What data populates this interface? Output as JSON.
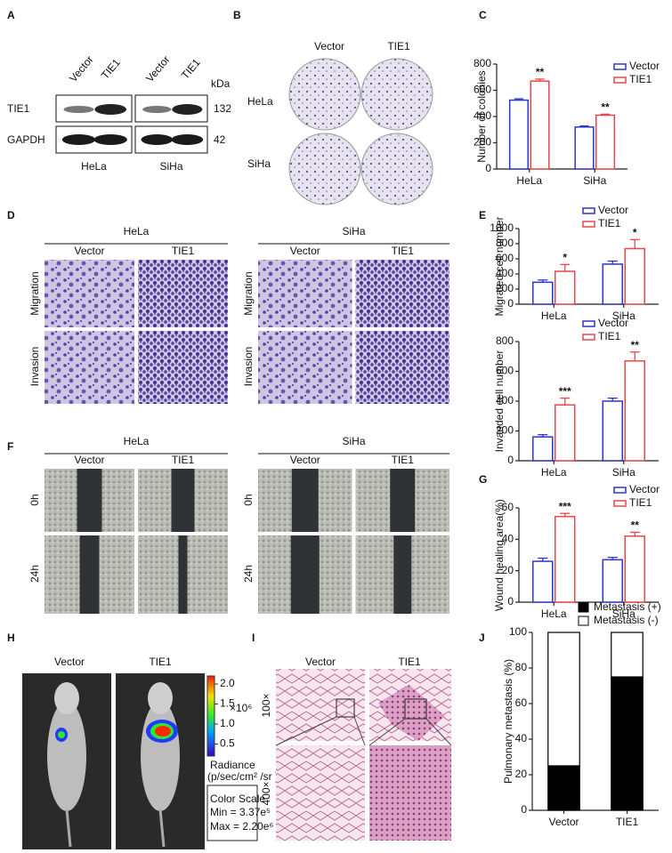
{
  "panel_labels": [
    "A",
    "B",
    "C",
    "D",
    "E",
    "F",
    "G",
    "H",
    "I",
    "J"
  ],
  "blot": {
    "groups": [
      "Vector",
      "TIE1",
      "Vector",
      "TIE1"
    ],
    "unit": "kDa",
    "proteins": [
      "TIE1",
      "GAPDH"
    ],
    "sizes": [
      132,
      42
    ],
    "cells": [
      "HeLa",
      "SiHa"
    ]
  },
  "colony": {
    "columns": [
      "Vector",
      "TIE1"
    ],
    "rows": [
      "HeLa",
      "SiHa"
    ]
  },
  "transwell": {
    "cells": [
      "HeLa",
      "SiHa"
    ],
    "columns": [
      "Vector",
      "TIE1"
    ],
    "rows": [
      "Migration",
      "Invasion"
    ]
  },
  "wound": {
    "cells": [
      "HeLa",
      "SiHa"
    ],
    "columns": [
      "Vector",
      "TIE1"
    ],
    "rows": [
      "0h",
      "24h"
    ]
  },
  "imaging": {
    "columns": [
      "Vector",
      "TIE1"
    ],
    "colorbar_ticks": [
      {
        "value": 2,
        "label": "2.0"
      },
      {
        "value": 1.5,
        "label": "1.5"
      },
      {
        "value": 1,
        "label": "1.0"
      },
      {
        "value": 0.5,
        "label": "0.5"
      }
    ],
    "colorbar_exponent": "×10⁶",
    "radiance_title": "Radiance",
    "radiance_unit": "(p/sec/cm² /sr )",
    "scale_title": "Color Scale",
    "scale_min": "Min = 3.37e⁵",
    "scale_max": "Max = 2.20e⁶"
  },
  "histology": {
    "columns": [
      "Vector",
      "TIE1"
    ],
    "rows": [
      "100×",
      "400×"
    ]
  },
  "chart_data": [
    {
      "type": "bar",
      "ylabel": "Number of colonies",
      "categories": [
        "HeLa",
        "SiHa"
      ],
      "series": [
        {
          "name": "Vector",
          "color": "#2e35c9",
          "values": [
            525,
            320
          ],
          "errors": [
            10,
            8
          ]
        },
        {
          "name": "TIE1",
          "color": "#e8474b",
          "values": [
            670,
            410
          ],
          "errors": [
            15,
            8
          ],
          "sig_labels": [
            "**",
            "**"
          ]
        }
      ],
      "ylim": [
        0,
        800
      ],
      "yticks": [
        0,
        200,
        400,
        600,
        800
      ]
    },
    {
      "type": "bar",
      "ylabel": "Migrated cell number",
      "categories": [
        "HeLa",
        "SiHa"
      ],
      "series": [
        {
          "name": "Vector",
          "color": "#2e35c9",
          "values": [
            290,
            530
          ],
          "errors": [
            30,
            40
          ]
        },
        {
          "name": "TIE1",
          "color": "#e8474b",
          "values": [
            435,
            735
          ],
          "errors": [
            90,
            120
          ],
          "sig_labels": [
            "*",
            "*"
          ]
        }
      ],
      "ylim": [
        0,
        1000
      ],
      "yticks": [
        0,
        200,
        400,
        600,
        800,
        1000
      ]
    },
    {
      "type": "bar",
      "ylabel": "Invaeded cell number",
      "categories": [
        "HeLa",
        "SiHa"
      ],
      "series": [
        {
          "name": "Vector",
          "color": "#2e35c9",
          "values": [
            160,
            400
          ],
          "errors": [
            15,
            20
          ]
        },
        {
          "name": "TIE1",
          "color": "#e8474b",
          "values": [
            375,
            670
          ],
          "errors": [
            45,
            60
          ],
          "sig_labels": [
            "***",
            "**"
          ]
        }
      ],
      "ylim": [
        0,
        800
      ],
      "yticks": [
        0,
        200,
        400,
        600,
        800
      ]
    },
    {
      "type": "bar",
      "ylabel": "Wound healing area(%)",
      "categories": [
        "HeLa",
        "SiHa"
      ],
      "series": [
        {
          "name": "Vector",
          "color": "#2e35c9",
          "values": [
            26,
            27
          ],
          "errors": [
            2,
            1.5
          ]
        },
        {
          "name": "TIE1",
          "color": "#e8474b",
          "values": [
            54.5,
            42
          ],
          "errors": [
            2,
            2.5
          ],
          "sig_labels": [
            "***",
            "**"
          ]
        }
      ],
      "ylim": [
        0,
        60
      ],
      "yticks": [
        0,
        20,
        40,
        60
      ]
    },
    {
      "type": "stacked_bar",
      "ylabel": "Pulmonary metastasis (%)",
      "categories": [
        "Vector",
        "TIE1"
      ],
      "series": [
        {
          "name": "Metastasis (+)",
          "color": "#000000",
          "values": [
            25,
            75
          ]
        },
        {
          "name": "Metastasis (-)",
          "color": "#ffffff",
          "values": [
            75,
            25
          ]
        }
      ],
      "ylim": [
        0,
        100
      ],
      "yticks": [
        0,
        20,
        40,
        60,
        80,
        100
      ]
    }
  ]
}
